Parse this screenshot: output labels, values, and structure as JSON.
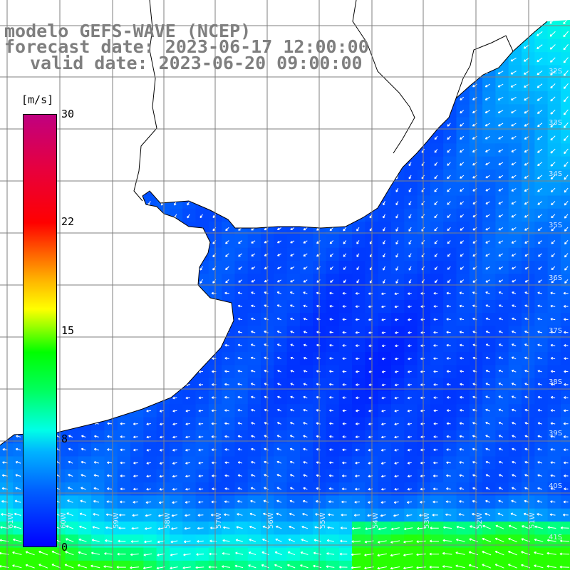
{
  "title": {
    "line1": "modelo GEFS-WAVE (NCEP)",
    "line2": "forecast date: 2023-06-17 12:00:00",
    "line3": "valid date: 2023-06-20 09:00:00"
  },
  "colorbar": {
    "unit": "[m/s]",
    "ticks": [
      "30",
      "22",
      "15",
      "8",
      "0"
    ],
    "min": 0,
    "max": 30
  },
  "grid": {
    "lat_labels": [
      "32S",
      "33S",
      "34S",
      "35S",
      "36S",
      "37S",
      "38S",
      "39S",
      "40S",
      "41S"
    ],
    "lon_labels": [
      "61W",
      "60W",
      "59W",
      "58W",
      "57W",
      "56W",
      "55W",
      "54W",
      "53W",
      "52W",
      "51W"
    ]
  },
  "colors": {
    "land": "#ffffff",
    "coast": "#000000",
    "grid": "#808080",
    "title": "#7f7f7f",
    "arrow": "#ffffff"
  }
}
